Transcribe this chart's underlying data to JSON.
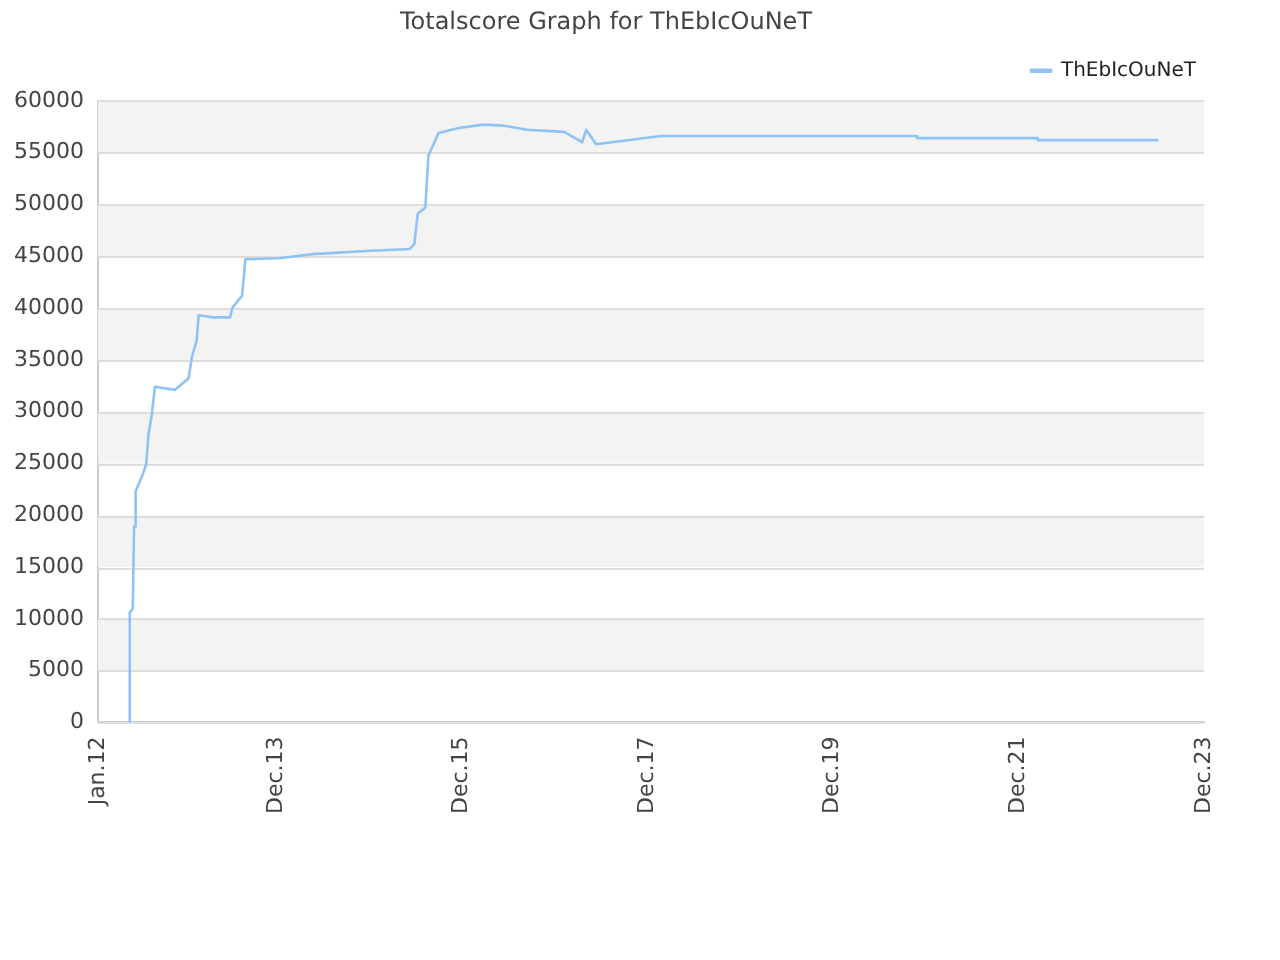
{
  "chart_data": {
    "type": "line",
    "title": "Totalscore Graph for ThEbIcOuNeT",
    "x": [
      "2012-05-04",
      "2012-05-05",
      "2012-05-17",
      "2012-05-22",
      "2012-05-28",
      "2012-06-23",
      "2012-07-09",
      "2012-07-17",
      "2012-07-30",
      "2012-08-12",
      "2012-10-30",
      "2012-12-22",
      "2013-01-05",
      "2013-01-23",
      "2013-01-31",
      "2013-03-25",
      "2013-06-04",
      "2013-06-12",
      "2013-07-21",
      "2013-08-03",
      "2013-12-13",
      "2014-04-25",
      "2014-11-21",
      "2015-05-12",
      "2015-05-30",
      "2015-06-12",
      "2015-07-12",
      "2015-07-24",
      "2015-09-02",
      "2015-11-26",
      "2016-02-26",
      "2016-05-15",
      "2016-08-15",
      "2017-01-08",
      "2017-03-20",
      "2017-04-05",
      "2017-05-14",
      "2017-09-15",
      "2018-01-25",
      "2020-10-24",
      "2020-10-29",
      "2022-02-11",
      "2022-02-15",
      "2023-06-05"
    ],
    "series": [
      {
        "name": "ThEbIcOuNeT",
        "color": "#8ec3f5",
        "values": [
          0,
          10600,
          11000,
          18900,
          22300,
          23800,
          24900,
          27700,
          29600,
          32400,
          32100,
          33200,
          35300,
          36800,
          39300,
          39100,
          39100,
          40000,
          41200,
          44700,
          44800,
          45200,
          45500,
          45700,
          46200,
          49100,
          49700,
          54700,
          56900,
          57400,
          57700,
          57600,
          57200,
          57000,
          56000,
          57200,
          55800,
          56200,
          56600,
          56600,
          56400,
          56400,
          56200,
          56200
        ]
      }
    ],
    "xlim": [
      "2012-01-01",
      "2023-12-01"
    ],
    "xticks": [
      {
        "value": "2012-01-01",
        "label": "Jan.12"
      },
      {
        "value": "2013-12-01",
        "label": "Dec.13"
      },
      {
        "value": "2015-12-01",
        "label": "Dec.15"
      },
      {
        "value": "2017-12-01",
        "label": "Dec.17"
      },
      {
        "value": "2019-12-01",
        "label": "Dec.19"
      },
      {
        "value": "2021-12-01",
        "label": "Dec.21"
      },
      {
        "value": "2023-12-01",
        "label": "Dec.23"
      }
    ],
    "ylim": [
      0,
      60000
    ],
    "yticks": [
      0,
      5000,
      10000,
      15000,
      20000,
      25000,
      30000,
      35000,
      40000,
      45000,
      50000,
      55000,
      60000
    ],
    "grid": "y",
    "legend": "top right",
    "marker": "none",
    "line_style": "solid"
  }
}
